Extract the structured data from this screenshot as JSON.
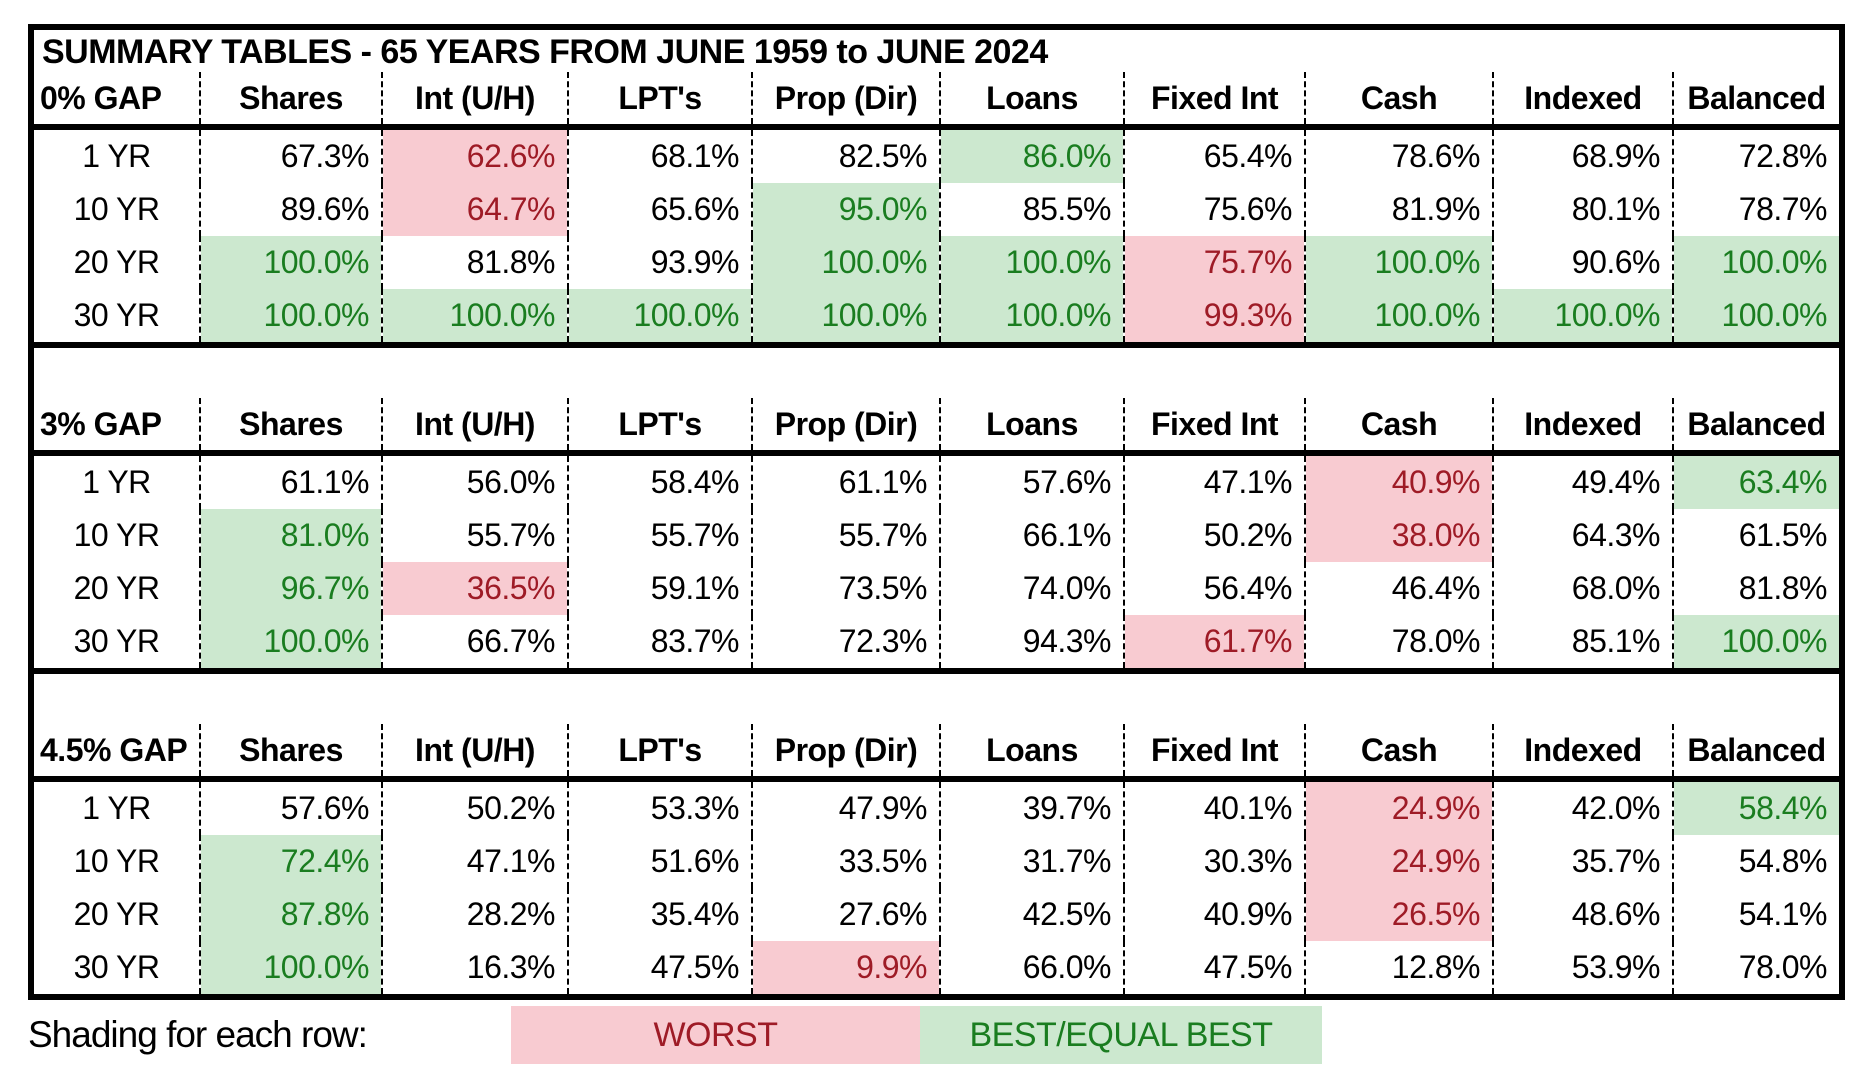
{
  "title": "SUMMARY TABLES - 65 YEARS FROM JUNE 1959 to JUNE 2024",
  "columns": [
    "Shares",
    "Int (U/H)",
    "LPT's",
    "Prop (Dir)",
    "Loans",
    "Fixed Int",
    "Cash",
    "Indexed",
    "Balanced"
  ],
  "sections": [
    {
      "gap_label": "0% GAP",
      "rows": [
        {
          "label": "1 YR",
          "values": [
            "67.3%",
            "62.6%",
            "68.1%",
            "82.5%",
            "86.0%",
            "65.4%",
            "78.6%",
            "68.9%",
            "72.8%"
          ],
          "shading": [
            "",
            "worst",
            "",
            "",
            "best",
            "",
            "",
            "",
            ""
          ]
        },
        {
          "label": "10 YR",
          "values": [
            "89.6%",
            "64.7%",
            "65.6%",
            "95.0%",
            "85.5%",
            "75.6%",
            "81.9%",
            "80.1%",
            "78.7%"
          ],
          "shading": [
            "",
            "worst",
            "",
            "best",
            "",
            "",
            "",
            "",
            ""
          ]
        },
        {
          "label": "20 YR",
          "values": [
            "100.0%",
            "81.8%",
            "93.9%",
            "100.0%",
            "100.0%",
            "75.7%",
            "100.0%",
            "90.6%",
            "100.0%"
          ],
          "shading": [
            "best",
            "",
            "",
            "best",
            "best",
            "worst",
            "best",
            "",
            "best"
          ]
        },
        {
          "label": "30 YR",
          "values": [
            "100.0%",
            "100.0%",
            "100.0%",
            "100.0%",
            "100.0%",
            "99.3%",
            "100.0%",
            "100.0%",
            "100.0%"
          ],
          "shading": [
            "best",
            "best",
            "best",
            "best",
            "best",
            "worst",
            "best",
            "best",
            "best"
          ]
        }
      ]
    },
    {
      "gap_label": "3% GAP",
      "rows": [
        {
          "label": "1 YR",
          "values": [
            "61.1%",
            "56.0%",
            "58.4%",
            "61.1%",
            "57.6%",
            "47.1%",
            "40.9%",
            "49.4%",
            "63.4%"
          ],
          "shading": [
            "",
            "",
            "",
            "",
            "",
            "",
            "worst",
            "",
            "best"
          ]
        },
        {
          "label": "10 YR",
          "values": [
            "81.0%",
            "55.7%",
            "55.7%",
            "55.7%",
            "66.1%",
            "50.2%",
            "38.0%",
            "64.3%",
            "61.5%"
          ],
          "shading": [
            "best",
            "",
            "",
            "",
            "",
            "",
            "worst",
            "",
            ""
          ]
        },
        {
          "label": "20 YR",
          "values": [
            "96.7%",
            "36.5%",
            "59.1%",
            "73.5%",
            "74.0%",
            "56.4%",
            "46.4%",
            "68.0%",
            "81.8%"
          ],
          "shading": [
            "best",
            "worst",
            "",
            "",
            "",
            "",
            "",
            "",
            ""
          ]
        },
        {
          "label": "30 YR",
          "values": [
            "100.0%",
            "66.7%",
            "83.7%",
            "72.3%",
            "94.3%",
            "61.7%",
            "78.0%",
            "85.1%",
            "100.0%"
          ],
          "shading": [
            "best",
            "",
            "",
            "",
            "",
            "worst",
            "",
            "",
            "best"
          ]
        }
      ]
    },
    {
      "gap_label": "4.5% GAP",
      "rows": [
        {
          "label": "1 YR",
          "values": [
            "57.6%",
            "50.2%",
            "53.3%",
            "47.9%",
            "39.7%",
            "40.1%",
            "24.9%",
            "42.0%",
            "58.4%"
          ],
          "shading": [
            "",
            "",
            "",
            "",
            "",
            "",
            "worst",
            "",
            "best"
          ]
        },
        {
          "label": "10 YR",
          "values": [
            "72.4%",
            "47.1%",
            "51.6%",
            "33.5%",
            "31.7%",
            "30.3%",
            "24.9%",
            "35.7%",
            "54.8%"
          ],
          "shading": [
            "best",
            "",
            "",
            "",
            "",
            "",
            "worst",
            "",
            ""
          ]
        },
        {
          "label": "20 YR",
          "values": [
            "87.8%",
            "28.2%",
            "35.4%",
            "27.6%",
            "42.5%",
            "40.9%",
            "26.5%",
            "48.6%",
            "54.1%"
          ],
          "shading": [
            "best",
            "",
            "",
            "",
            "",
            "",
            "worst",
            "",
            ""
          ]
        },
        {
          "label": "30 YR",
          "values": [
            "100.0%",
            "16.3%",
            "47.5%",
            "9.9%",
            "66.0%",
            "47.5%",
            "12.8%",
            "53.9%",
            "78.0%"
          ],
          "shading": [
            "best",
            "",
            "",
            "worst",
            "",
            "",
            "",
            "",
            ""
          ]
        }
      ]
    }
  ],
  "legend": {
    "label": "Shading for each row:",
    "worst": "WORST",
    "best": "BEST/EQUAL BEST"
  },
  "colors": {
    "worst_bg": "#f8cbd1",
    "worst_text": "#9e1b26",
    "best_bg": "#cce8cf",
    "best_text": "#1a7d20",
    "border": "#000000"
  }
}
